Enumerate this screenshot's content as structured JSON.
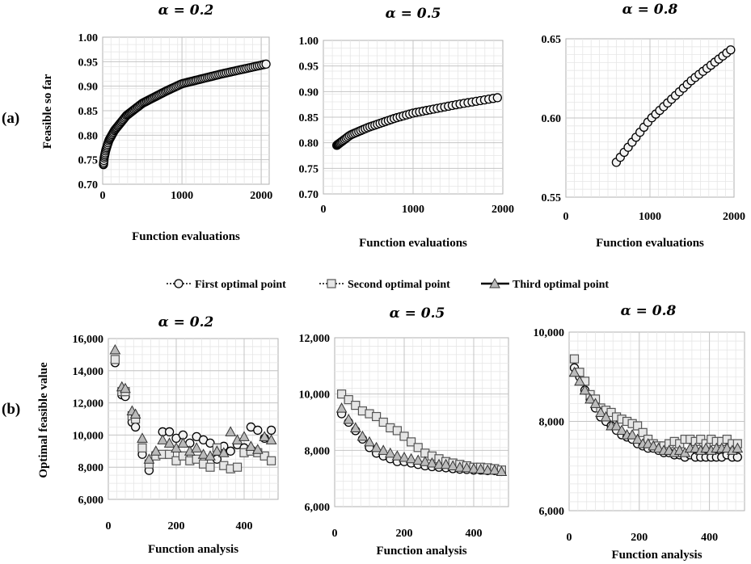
{
  "panel_labels": [
    "(a)",
    "(b)"
  ],
  "legend": {
    "items": [
      {
        "label": "First optimal point",
        "marker": "circle",
        "line": "dotted"
      },
      {
        "label": "Second optimal point",
        "marker": "square",
        "line": "dotted"
      },
      {
        "label": "Third optimal point",
        "marker": "triangle",
        "line": "solid"
      }
    ]
  },
  "chart_data": [
    {
      "type": "scatter",
      "row": "a",
      "title": "α = 0.2",
      "xlabel": "Function evaluations",
      "ylabel": "Feasible so far",
      "xlim": [
        0,
        2100
      ],
      "ylim": [
        0.7,
        1.0
      ],
      "xticks": [
        0,
        1000,
        2000
      ],
      "yticks": [
        0.7,
        0.75,
        0.8,
        0.85,
        0.9,
        0.95,
        1.0
      ],
      "ytick_decimals": 2,
      "grid": true,
      "series": [
        {
          "marker": "circle",
          "x_start": 10,
          "x_end": 2060,
          "count": 120,
          "curve": "log",
          "x": [
            10,
            20,
            40,
            80,
            150,
            300,
            500,
            800,
            1000,
            1500,
            2060
          ],
          "y": [
            0.74,
            0.755,
            0.77,
            0.79,
            0.81,
            0.84,
            0.865,
            0.89,
            0.905,
            0.925,
            0.945
          ]
        }
      ]
    },
    {
      "type": "scatter",
      "row": "a",
      "title": "α = 0.5",
      "xlabel": "Function evaluations",
      "ylabel": "",
      "xlim": [
        0,
        2000
      ],
      "ylim": [
        0.7,
        1.0
      ],
      "xticks": [
        0,
        1000,
        2000
      ],
      "yticks": [
        0.7,
        0.75,
        0.8,
        0.85,
        0.9,
        0.95,
        1.0
      ],
      "ytick_decimals": 2,
      "grid": true,
      "series": [
        {
          "marker": "circle",
          "x_start": 150,
          "x_end": 1940,
          "count": 60,
          "curve": "log",
          "x": [
            150,
            300,
            500,
            800,
            1000,
            1500,
            1940
          ],
          "y": [
            0.795,
            0.815,
            0.83,
            0.848,
            0.858,
            0.875,
            0.888
          ]
        }
      ]
    },
    {
      "type": "scatter",
      "row": "a",
      "title": "α = 0.8",
      "xlabel": "Function evaluations",
      "ylabel": "",
      "xlim": [
        0,
        2000
      ],
      "ylim": [
        0.55,
        0.65
      ],
      "xticks": [
        0,
        1000,
        2000
      ],
      "yticks": [
        0.55,
        0.6,
        0.65
      ],
      "ytick_decimals": 2,
      "grid": true,
      "series": [
        {
          "marker": "circle",
          "x_start": 600,
          "x_end": 1960,
          "count": 30,
          "curve": "linear",
          "x": [
            600,
            1000,
            1500,
            1960
          ],
          "y": [
            0.572,
            0.599,
            0.624,
            0.643
          ]
        }
      ]
    },
    {
      "type": "scatter",
      "row": "b",
      "title": "α = 0.2",
      "xlabel": "Function analysis",
      "ylabel": "Optimal feasible value",
      "xlim": [
        0,
        500
      ],
      "ylim": [
        6000,
        16000
      ],
      "xticks": [
        0,
        200,
        400
      ],
      "yticks": [
        6000,
        8000,
        10000,
        12000,
        14000,
        16000
      ],
      "ytick_decimals": 0,
      "thousands_sep": true,
      "grid": true,
      "series": [
        {
          "name": "First optimal point",
          "marker": "circle",
          "x": [
            20,
            40,
            50,
            70,
            80,
            100,
            120,
            140,
            160,
            180,
            200,
            220,
            240,
            260,
            280,
            300,
            320,
            340,
            360,
            380,
            400,
            420,
            440,
            460,
            480
          ],
          "y": [
            14500,
            12500,
            12400,
            10800,
            10500,
            8800,
            7800,
            8800,
            10200,
            10200,
            9800,
            10000,
            9500,
            9900,
            9700,
            9500,
            8500,
            9300,
            9000,
            9400,
            9200,
            10500,
            10300,
            9800,
            10300
          ]
        },
        {
          "name": "Second optimal point",
          "marker": "square",
          "x": [
            20,
            40,
            50,
            70,
            80,
            100,
            120,
            140,
            160,
            180,
            200,
            220,
            240,
            260,
            280,
            300,
            320,
            340,
            360,
            380,
            400,
            420,
            440,
            460,
            480
          ],
          "y": [
            14700,
            12700,
            12700,
            11200,
            11000,
            9200,
            8200,
            8700,
            8800,
            8800,
            8400,
            8700,
            8400,
            8500,
            8200,
            8000,
            9200,
            8100,
            7900,
            8000,
            8900,
            9000,
            8900,
            8700,
            8400
          ]
        },
        {
          "name": "Third optimal point",
          "marker": "triangle",
          "x": [
            20,
            40,
            50,
            70,
            80,
            100,
            120,
            140,
            160,
            180,
            200,
            220,
            240,
            260,
            280,
            300,
            320,
            340,
            360,
            380,
            400,
            420,
            440,
            460,
            480
          ],
          "y": [
            15300,
            13000,
            12900,
            11500,
            11300,
            9800,
            8500,
            9000,
            9700,
            9500,
            9200,
            9500,
            9000,
            9200,
            8800,
            8700,
            9000,
            8900,
            10200,
            9700,
            9900,
            9300,
            9100,
            9900,
            9700
          ]
        }
      ]
    },
    {
      "type": "scatter",
      "row": "b",
      "title": "α = 0.5",
      "xlabel": "Function analysis",
      "ylabel": "",
      "xlim": [
        0,
        500
      ],
      "ylim": [
        6000,
        12000
      ],
      "xticks": [
        0,
        200,
        400
      ],
      "yticks": [
        6000,
        8000,
        10000,
        12000
      ],
      "ytick_decimals": 0,
      "thousands_sep": true,
      "grid": true,
      "series": [
        {
          "name": "First optimal point",
          "marker": "circle",
          "decay": {
            "from": 9300,
            "to": 7300,
            "rate": 90
          },
          "x": [
            20,
            40,
            60,
            80,
            100,
            120,
            140,
            160,
            180,
            200,
            220,
            240,
            260,
            280,
            300,
            320,
            340,
            360,
            380,
            400,
            420,
            440,
            460,
            480
          ],
          "y": [
            9300,
            9000,
            8700,
            8400,
            8100,
            7900,
            7800,
            7700,
            7600,
            7600,
            7550,
            7500,
            7450,
            7420,
            7400,
            7380,
            7350,
            7330,
            7320,
            7300,
            7300,
            7280,
            7280,
            7250
          ]
        },
        {
          "name": "Second optimal point",
          "marker": "square",
          "x": [
            20,
            40,
            60,
            80,
            100,
            120,
            140,
            160,
            180,
            200,
            220,
            240,
            260,
            280,
            300,
            320,
            340,
            360,
            380,
            400,
            420,
            440,
            460,
            480
          ],
          "y": [
            10000,
            9800,
            9600,
            9400,
            9300,
            9200,
            9000,
            8800,
            8700,
            8500,
            8300,
            8100,
            7900,
            7800,
            7700,
            7600,
            7550,
            7500,
            7450,
            7400,
            7400,
            7380,
            7350,
            7300
          ]
        },
        {
          "name": "Third optimal point",
          "marker": "triangle",
          "x": [
            20,
            40,
            60,
            80,
            100,
            120,
            140,
            160,
            180,
            200,
            220,
            240,
            260,
            280,
            300,
            320,
            340,
            360,
            380,
            400,
            420,
            440,
            460,
            480
          ],
          "y": [
            9500,
            9100,
            8800,
            8500,
            8300,
            8100,
            8000,
            7900,
            7800,
            7750,
            7700,
            7650,
            7600,
            7550,
            7500,
            7500,
            7450,
            7400,
            7380,
            7350,
            7330,
            7300,
            7300,
            7250
          ]
        }
      ]
    },
    {
      "type": "scatter",
      "row": "b",
      "title": "α = 0.8",
      "xlabel": "Function analysis",
      "ylabel": "",
      "xlim": [
        0,
        500
      ],
      "ylim": [
        6000,
        10000
      ],
      "xticks": [
        0,
        200,
        400
      ],
      "yticks": [
        6000,
        8000,
        10000
      ],
      "ytick_decimals": 0,
      "thousands_sep": true,
      "grid": true,
      "series": [
        {
          "name": "First optimal point",
          "marker": "circle",
          "x": [
            15,
            30,
            45,
            60,
            75,
            90,
            105,
            120,
            135,
            150,
            165,
            180,
            195,
            210,
            225,
            240,
            255,
            270,
            285,
            300,
            315,
            330,
            345,
            360,
            375,
            390,
            405,
            420,
            435,
            450,
            465,
            480
          ],
          "y": [
            9200,
            9000,
            8700,
            8500,
            8300,
            8100,
            8000,
            7900,
            7800,
            7700,
            7650,
            7600,
            7500,
            7450,
            7400,
            7400,
            7350,
            7300,
            7300,
            7250,
            7250,
            7200,
            7250,
            7200,
            7200,
            7200,
            7200,
            7200,
            7200,
            7250,
            7200,
            7200
          ]
        },
        {
          "name": "Second optimal point",
          "marker": "square",
          "x": [
            15,
            30,
            45,
            60,
            75,
            90,
            105,
            120,
            135,
            150,
            165,
            180,
            195,
            210,
            225,
            240,
            255,
            270,
            285,
            300,
            315,
            330,
            345,
            360,
            375,
            390,
            405,
            420,
            435,
            450,
            465,
            480
          ],
          "y": [
            9400,
            9100,
            8900,
            8600,
            8500,
            8300,
            8250,
            8200,
            8100,
            8050,
            8000,
            7950,
            7900,
            7750,
            7600,
            7500,
            7450,
            7450,
            7500,
            7550,
            7500,
            7600,
            7600,
            7550,
            7600,
            7500,
            7600,
            7550,
            7550,
            7600,
            7500,
            7500
          ]
        },
        {
          "name": "Third optimal point",
          "marker": "triangle",
          "x": [
            15,
            30,
            45,
            60,
            75,
            90,
            105,
            120,
            135,
            150,
            165,
            180,
            195,
            210,
            225,
            240,
            255,
            270,
            285,
            300,
            315,
            330,
            345,
            360,
            375,
            390,
            405,
            420,
            435,
            450,
            465,
            480
          ],
          "y": [
            9100,
            8900,
            8700,
            8500,
            8400,
            8200,
            8100,
            7900,
            7900,
            7800,
            7700,
            7700,
            7600,
            7500,
            7500,
            7450,
            7400,
            7350,
            7350,
            7300,
            7350,
            7300,
            7400,
            7400,
            7350,
            7400,
            7350,
            7400,
            7400,
            7400,
            7350,
            7400
          ]
        }
      ]
    }
  ]
}
